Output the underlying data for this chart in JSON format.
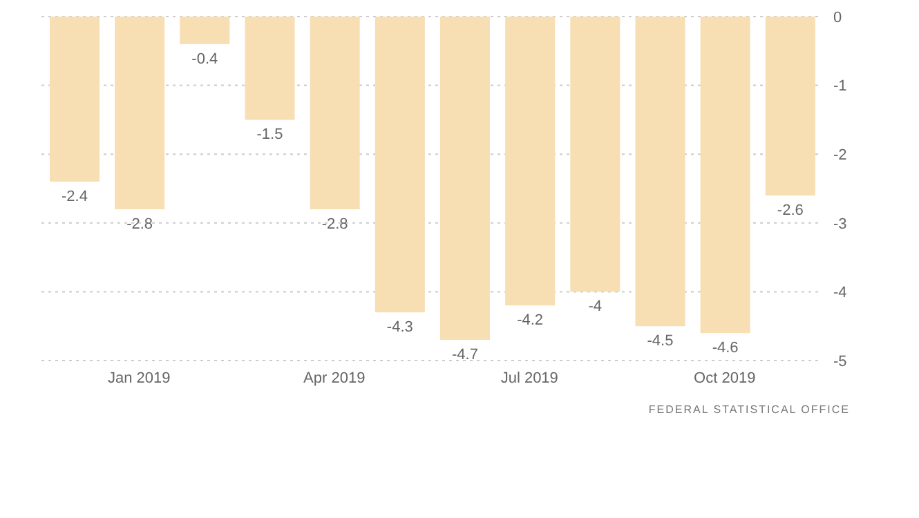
{
  "chart_data": {
    "type": "bar",
    "categories": [
      null,
      "Jan 2019",
      null,
      null,
      "Apr 2019",
      null,
      null,
      "Jul 2019",
      null,
      null,
      "Oct 2019",
      null
    ],
    "values": [
      -2.4,
      -2.8,
      -0.4,
      -1.5,
      -2.8,
      -4.3,
      -4.7,
      -4.2,
      -4,
      -4.5,
      -4.6,
      -2.6
    ],
    "color": "#f7deb3",
    "ylim": [
      -5,
      0
    ],
    "yticks": [
      0,
      -1,
      -2,
      -3,
      -4,
      -5
    ],
    "grid": "y",
    "data_labels": true,
    "annotations": [
      "FEDERAL STATISTICAL OFFICE"
    ]
  }
}
